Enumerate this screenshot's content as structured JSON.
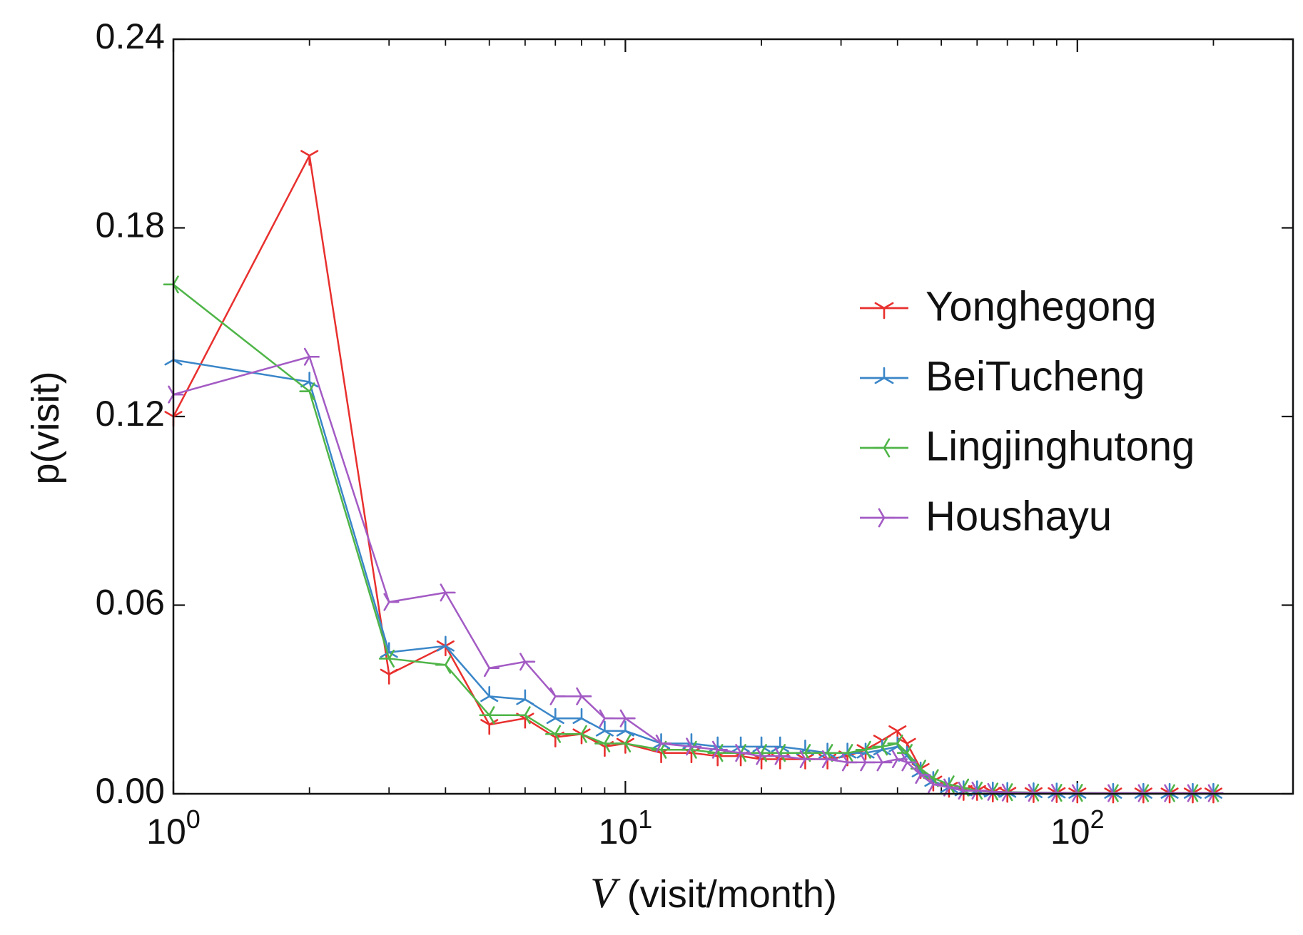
{
  "chart_data": {
    "type": "line",
    "xscale": "log",
    "xlim": [
      1,
      300
    ],
    "ylim": [
      0,
      0.24
    ],
    "xlabel_var": "V",
    "xlabel_unit": " (visit/month)",
    "ylabel": "p(visit)",
    "legend_position": "right",
    "yticks": [
      {
        "value": 0.0,
        "label": "0.00"
      },
      {
        "value": 0.06,
        "label": "0.06"
      },
      {
        "value": 0.12,
        "label": "0.12"
      },
      {
        "value": 0.18,
        "label": "0.18"
      },
      {
        "value": 0.24,
        "label": "0.24"
      }
    ],
    "xticks": [
      {
        "value": 1,
        "base": "10",
        "exp": "0"
      },
      {
        "value": 10,
        "base": "10",
        "exp": "1"
      },
      {
        "value": 100,
        "base": "10",
        "exp": "2"
      }
    ],
    "series": [
      {
        "name": "Yonghegong",
        "color": "#e8302e",
        "marker": "tri_down",
        "x": [
          1,
          2,
          3,
          4,
          5,
          6,
          7,
          8,
          9,
          10,
          12,
          14,
          16,
          18,
          20,
          22,
          25,
          28,
          31,
          34,
          37,
          40,
          42,
          45,
          48,
          52,
          56,
          60,
          65,
          70,
          80,
          90,
          100,
          120,
          140,
          160,
          180,
          200
        ],
        "y": [
          0.12,
          0.203,
          0.038,
          0.047,
          0.022,
          0.024,
          0.018,
          0.019,
          0.015,
          0.016,
          0.013,
          0.013,
          0.012,
          0.012,
          0.011,
          0.011,
          0.011,
          0.011,
          0.012,
          0.014,
          0.017,
          0.02,
          0.016,
          0.008,
          0.004,
          0.002,
          0.001,
          0.001,
          0.0005,
          0.0004,
          0.0003,
          0.0003,
          0.0002,
          0.0002,
          0.0002,
          0.0002,
          0.0002,
          0.0002
        ]
      },
      {
        "name": "BeiTucheng",
        "color": "#3a86c8",
        "marker": "tri_up",
        "x": [
          1,
          2,
          3,
          4,
          5,
          6,
          7,
          8,
          9,
          10,
          12,
          14,
          16,
          18,
          20,
          22,
          25,
          28,
          31,
          34,
          37,
          40,
          42,
          45,
          48,
          52,
          56,
          60,
          65,
          70,
          80,
          90,
          100,
          120,
          140,
          160,
          180,
          200
        ],
        "y": [
          0.138,
          0.131,
          0.045,
          0.047,
          0.031,
          0.03,
          0.024,
          0.024,
          0.02,
          0.02,
          0.016,
          0.016,
          0.015,
          0.015,
          0.015,
          0.015,
          0.014,
          0.013,
          0.013,
          0.013,
          0.014,
          0.015,
          0.012,
          0.007,
          0.004,
          0.002,
          0.001,
          0.001,
          0.0006,
          0.0005,
          0.0004,
          0.0003,
          0.0002,
          0.0002,
          0.0002,
          0.0002,
          0.0002,
          0.0002
        ]
      },
      {
        "name": "Lingjinghutong",
        "color": "#4fb548",
        "marker": "tri_left",
        "x": [
          1,
          2,
          3,
          4,
          5,
          6,
          7,
          8,
          9,
          10,
          12,
          14,
          16,
          18,
          20,
          22,
          25,
          28,
          31,
          34,
          37,
          40,
          42,
          45,
          48,
          52,
          56,
          60,
          65,
          70,
          80,
          90,
          100,
          120,
          140,
          160,
          180,
          200
        ],
        "y": [
          0.162,
          0.128,
          0.043,
          0.041,
          0.025,
          0.025,
          0.019,
          0.019,
          0.016,
          0.016,
          0.014,
          0.014,
          0.013,
          0.013,
          0.013,
          0.013,
          0.013,
          0.013,
          0.013,
          0.014,
          0.015,
          0.016,
          0.013,
          0.008,
          0.005,
          0.003,
          0.002,
          0.001,
          0.0007,
          0.0005,
          0.0004,
          0.0003,
          0.0003,
          0.0002,
          0.0002,
          0.0002,
          0.0002,
          0.0002
        ]
      },
      {
        "name": "Houshayu",
        "color": "#a35bc4",
        "marker": "tri_right",
        "x": [
          1,
          2,
          3,
          4,
          5,
          6,
          7,
          8,
          9,
          10,
          12,
          14,
          16,
          18,
          20,
          22,
          25,
          28,
          31,
          34,
          37,
          40,
          42,
          45,
          48,
          52,
          56,
          60,
          65,
          70,
          80,
          90,
          100,
          120,
          140,
          160,
          180,
          200
        ],
        "y": [
          0.127,
          0.139,
          0.061,
          0.064,
          0.04,
          0.042,
          0.031,
          0.031,
          0.024,
          0.024,
          0.016,
          0.015,
          0.014,
          0.013,
          0.012,
          0.012,
          0.011,
          0.011,
          0.01,
          0.01,
          0.01,
          0.011,
          0.01,
          0.006,
          0.003,
          0.002,
          0.001,
          0.001,
          0.0006,
          0.0004,
          0.0003,
          0.0003,
          0.0002,
          0.0002,
          0.0002,
          0.0002,
          0.0002,
          0.0002
        ]
      }
    ]
  }
}
